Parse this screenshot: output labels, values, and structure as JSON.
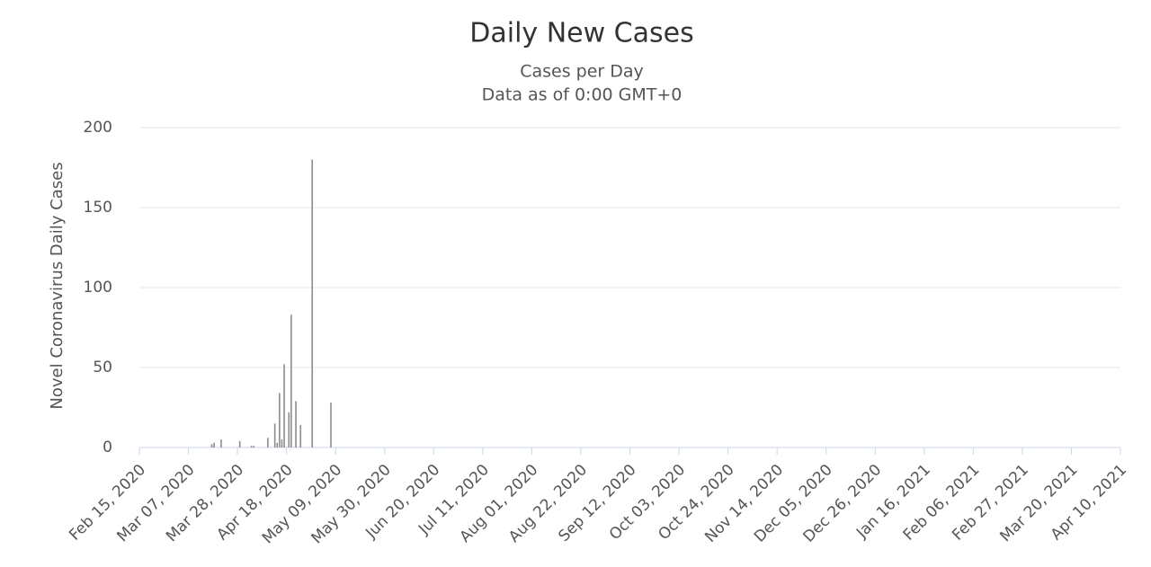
{
  "chart_data": {
    "type": "bar",
    "title": "Daily New Cases",
    "subtitle": [
      "Cases per Day",
      "Data as of 0:00 GMT+0"
    ],
    "y_label": "Novel Coronavirus Daily Cases",
    "color": "#8c8c8c",
    "x": [
      "2020-03-17",
      "2020-03-18",
      "2020-03-21",
      "2020-03-29",
      "2020-04-03",
      "2020-04-04",
      "2020-04-10",
      "2020-04-13",
      "2020-04-14",
      "2020-04-15",
      "2020-04-16",
      "2020-04-17",
      "2020-04-19",
      "2020-04-20",
      "2020-04-22",
      "2020-04-24",
      "2020-04-29",
      "2020-05-07"
    ],
    "values": [
      2,
      3,
      5,
      4,
      1,
      1,
      6,
      15,
      3,
      34,
      5,
      52,
      22,
      83,
      29,
      14,
      180,
      28
    ],
    "xlim": [
      "2020-02-15",
      "2021-04-10"
    ],
    "xticks": [
      {
        "value": "2020-02-15",
        "label": "Feb 15, 2020"
      },
      {
        "value": "2020-03-07",
        "label": "Mar 07, 2020"
      },
      {
        "value": "2020-03-28",
        "label": "Mar 28, 2020"
      },
      {
        "value": "2020-04-18",
        "label": "Apr 18, 2020"
      },
      {
        "value": "2020-05-09",
        "label": "May 09, 2020"
      },
      {
        "value": "2020-05-30",
        "label": "May 30, 2020"
      },
      {
        "value": "2020-06-20",
        "label": "Jun 20, 2020"
      },
      {
        "value": "2020-07-11",
        "label": "Jul 11, 2020"
      },
      {
        "value": "2020-08-01",
        "label": "Aug 01, 2020"
      },
      {
        "value": "2020-08-22",
        "label": "Aug 22, 2020"
      },
      {
        "value": "2020-09-12",
        "label": "Sep 12, 2020"
      },
      {
        "value": "2020-10-03",
        "label": "Oct 03, 2020"
      },
      {
        "value": "2020-10-24",
        "label": "Oct 24, 2020"
      },
      {
        "value": "2020-11-14",
        "label": "Nov 14, 2020"
      },
      {
        "value": "2020-12-05",
        "label": "Dec 05, 2020"
      },
      {
        "value": "2020-12-26",
        "label": "Dec 26, 2020"
      },
      {
        "value": "2021-01-16",
        "label": "Jan 16, 2021"
      },
      {
        "value": "2021-02-06",
        "label": "Feb 06, 2021"
      },
      {
        "value": "2021-02-27",
        "label": "Feb 27, 2021"
      },
      {
        "value": "2021-03-20",
        "label": "Mar 20, 2021"
      },
      {
        "value": "2021-04-10",
        "label": "Apr 10, 2021"
      }
    ],
    "ylim": [
      0,
      200
    ],
    "yticks": [
      0,
      50,
      100,
      150,
      200
    ],
    "grid": true
  }
}
